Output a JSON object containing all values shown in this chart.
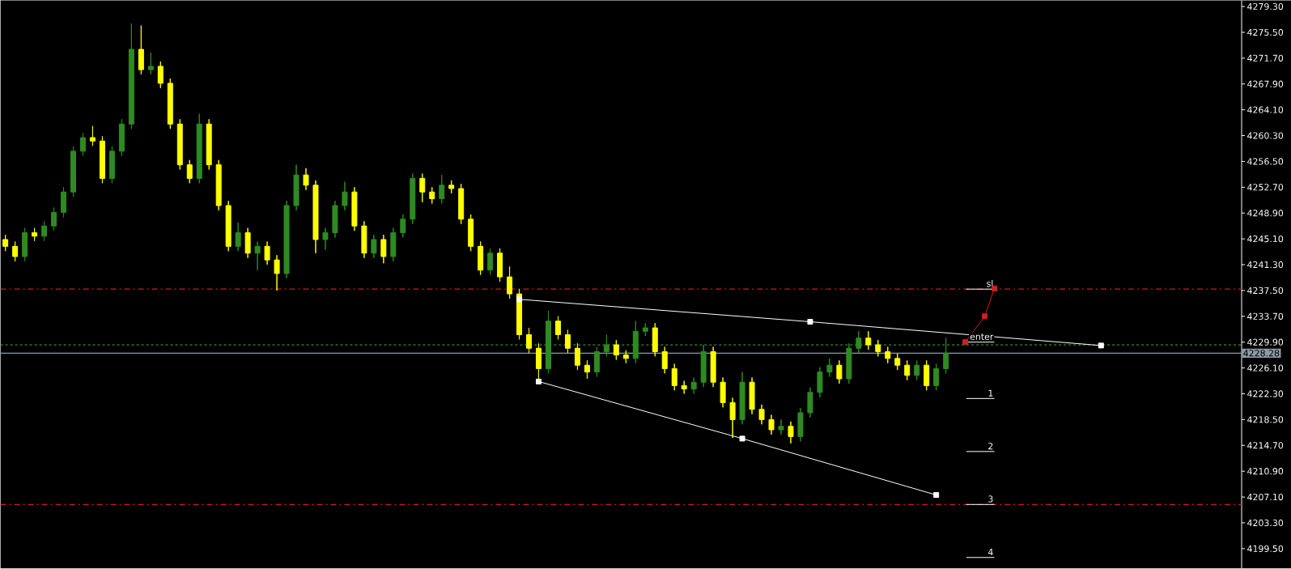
{
  "chart_data": {
    "type": "candlestick",
    "categories": [
      null,
      null,
      null,
      null,
      null,
      null,
      null,
      null,
      null,
      null,
      null,
      null,
      null,
      null,
      null,
      null,
      null,
      null,
      null,
      null,
      null,
      null,
      null,
      null,
      null,
      null,
      null,
      null,
      null,
      null,
      null,
      null,
      null,
      null,
      null,
      null,
      null,
      null,
      null,
      null,
      null,
      null,
      null,
      null,
      null,
      null,
      null,
      null,
      null,
      null,
      null,
      null,
      null,
      null,
      null,
      null,
      null,
      null,
      null,
      null,
      null,
      null,
      null,
      null,
      null,
      null,
      null,
      null,
      null,
      null,
      null,
      null,
      null,
      null,
      null,
      null,
      null,
      null,
      null,
      null,
      null,
      null,
      null,
      null,
      null,
      null,
      null,
      null,
      null,
      null,
      null,
      null,
      null,
      null,
      null,
      null,
      null,
      null,
      null,
      null,
      null,
      null,
      null,
      null,
      null,
      null,
      null,
      null,
      null,
      null,
      null,
      null,
      null,
      null,
      null,
      null,
      null,
      null,
      null,
      null,
      null,
      null,
      null,
      null,
      null,
      null,
      null,
      null
    ],
    "ohlc": [
      [
        4245,
        4245.7,
        4243.3,
        4244
      ],
      [
        4244,
        4244.7,
        4241.8,
        4242.5
      ],
      [
        4242.5,
        4246.7,
        4241.8,
        4246
      ],
      [
        4246,
        4246.7,
        4244.8,
        4245.5
      ],
      [
        4245.5,
        4247.7,
        4244.8,
        4247
      ],
      [
        4247,
        4249.7,
        4246.3,
        4249
      ],
      [
        4249,
        4252.7,
        4248.3,
        4252
      ],
      [
        4252,
        4258.7,
        4251.3,
        4258
      ],
      [
        4258,
        4260.7,
        4257.3,
        4260
      ],
      [
        4260,
        4261.7,
        4258.8,
        4259.5
      ],
      [
        4259.5,
        4260.2,
        4253.3,
        4254
      ],
      [
        4254,
        4258.7,
        4253.3,
        4258
      ],
      [
        4258,
        4262.7,
        4257.3,
        4262
      ],
      [
        4262,
        4276.8,
        4261.3,
        4273
      ],
      [
        4273,
        4276.5,
        4269.3,
        4270
      ],
      [
        4270,
        4272.5,
        4269.3,
        4270.5
      ],
      [
        4270.5,
        4271.2,
        4267.3,
        4268
      ],
      [
        4268,
        4268.7,
        4261.3,
        4262
      ],
      [
        4262,
        4262.7,
        4255.3,
        4256
      ],
      [
        4256,
        4256.7,
        4253.3,
        4254
      ],
      [
        4254,
        4263.5,
        4253.3,
        4262
      ],
      [
        4262,
        4262.7,
        4255.3,
        4256
      ],
      [
        4256,
        4256.7,
        4249.3,
        4250
      ],
      [
        4250,
        4250.7,
        4243.3,
        4244
      ],
      [
        4244,
        4247.5,
        4243.3,
        4246
      ],
      [
        4246,
        4246.7,
        4242.3,
        4243
      ],
      [
        4243,
        4244.7,
        4240.5,
        4244
      ],
      [
        4244,
        4244.7,
        4241.3,
        4242
      ],
      [
        4242,
        4242.7,
        4237.5,
        4240
      ],
      [
        4240,
        4250.7,
        4239.3,
        4250
      ],
      [
        4250,
        4256,
        4249.3,
        4254.5
      ],
      [
        4254.5,
        4255.5,
        4252.3,
        4253
      ],
      [
        4253,
        4253.7,
        4243,
        4245
      ],
      [
        4245,
        4246.7,
        4243.5,
        4246
      ],
      [
        4246,
        4250.7,
        4245.3,
        4250
      ],
      [
        4250,
        4253.5,
        4249.3,
        4252
      ],
      [
        4252,
        4252.7,
        4246.3,
        4247
      ],
      [
        4247,
        4247.7,
        4242.3,
        4243
      ],
      [
        4243,
        4245.7,
        4242.3,
        4245
      ],
      [
        4245,
        4245.7,
        4241.5,
        4242.5
      ],
      [
        4242.5,
        4246.7,
        4241.8,
        4246
      ],
      [
        4246,
        4248.7,
        4245.3,
        4248
      ],
      [
        4248,
        4254.7,
        4247.3,
        4254
      ],
      [
        4254,
        4254.7,
        4250.5,
        4252
      ],
      [
        4252,
        4252.7,
        4250.3,
        4251
      ],
      [
        4251,
        4254.5,
        4250.3,
        4253
      ],
      [
        4253,
        4253.7,
        4251.8,
        4252.5
      ],
      [
        4252.5,
        4253.2,
        4247.3,
        4248
      ],
      [
        4248,
        4248.7,
        4243.3,
        4244
      ],
      [
        4244,
        4244.7,
        4239.8,
        4240.5
      ],
      [
        4240.5,
        4243.7,
        4239.8,
        4243
      ],
      [
        4243,
        4243.7,
        4238.8,
        4239.5
      ],
      [
        4239.5,
        4241,
        4236.3,
        4237
      ],
      [
        4237,
        4237.7,
        4230.3,
        4231
      ],
      [
        4231,
        4232,
        4228.3,
        4229
      ],
      [
        4229,
        4229.7,
        4224.5,
        4226
      ],
      [
        4226,
        4234.5,
        4225.3,
        4233
      ],
      [
        4233,
        4233.7,
        4230.3,
        4231
      ],
      [
        4231,
        4231.7,
        4228.3,
        4229
      ],
      [
        4229,
        4229.7,
        4225.8,
        4226.5
      ],
      [
        4226.5,
        4227.2,
        4224.5,
        4225.5
      ],
      [
        4225.5,
        4229.2,
        4224.8,
        4228.5
      ],
      [
        4228.5,
        4231,
        4227.8,
        4229.5
      ],
      [
        4229.5,
        4230.2,
        4227.3,
        4228
      ],
      [
        4228,
        4228.7,
        4226.8,
        4227.5
      ],
      [
        4227.5,
        4233,
        4226.8,
        4231.5
      ],
      [
        4231.5,
        4232.7,
        4230.8,
        4232
      ],
      [
        4232,
        4232.7,
        4227.8,
        4228.5
      ],
      [
        4228.5,
        4229.2,
        4225.3,
        4226
      ],
      [
        4226,
        4226.7,
        4222.8,
        4223.5
      ],
      [
        4223.5,
        4224.2,
        4222.3,
        4223
      ],
      [
        4223,
        4224.7,
        4222.3,
        4224
      ],
      [
        4224,
        4229.5,
        4223.3,
        4228.5
      ],
      [
        4228.5,
        4229.2,
        4223.3,
        4224
      ],
      [
        4224,
        4224.7,
        4220.3,
        4221
      ],
      [
        4221,
        4221.7,
        4215.8,
        4218.5
      ],
      [
        4218.5,
        4225.5,
        4217.8,
        4224
      ],
      [
        4224,
        4224.7,
        4219.3,
        4220
      ],
      [
        4220,
        4220.7,
        4217.8,
        4218.5
      ],
      [
        4218.5,
        4219.2,
        4216.3,
        4217
      ],
      [
        4217,
        4218.5,
        4216.3,
        4217.5
      ],
      [
        4217.5,
        4218.2,
        4215,
        4216
      ],
      [
        4216,
        4220.2,
        4215.3,
        4219.5
      ],
      [
        4219.5,
        4223.2,
        4218.8,
        4222.5
      ],
      [
        4222.5,
        4226.2,
        4221.8,
        4225.5
      ],
      [
        4225.5,
        4227.5,
        4224.8,
        4226.5
      ],
      [
        4226.5,
        4227.2,
        4223.8,
        4224.5
      ],
      [
        4224.5,
        4229.7,
        4223.8,
        4229
      ],
      [
        4229,
        4231.5,
        4228.3,
        4230.5
      ],
      [
        4230.5,
        4231.5,
        4228.8,
        4229.5
      ],
      [
        4229.5,
        4230.2,
        4227.8,
        4228.5
      ],
      [
        4228.5,
        4229.2,
        4226.8,
        4227.5
      ],
      [
        4227.5,
        4228.2,
        4225.8,
        4226.5
      ],
      [
        4226.5,
        4227.2,
        4224.3,
        4225
      ],
      [
        4225,
        4227.2,
        4224.3,
        4226.5
      ],
      [
        4226.5,
        4227.2,
        4222.8,
        4223.5
      ],
      [
        4223.5,
        4226.7,
        4222.8,
        4226
      ],
      [
        4226,
        4230.5,
        4225.3,
        4228.28
      ],
      null,
      null,
      null,
      null,
      null,
      null,
      null,
      null,
      null,
      null,
      null,
      null,
      null,
      null,
      null,
      null,
      null,
      null,
      null,
      null,
      null,
      null,
      null,
      null,
      null,
      null,
      null,
      null,
      null,
      null
    ],
    "series": [
      {
        "type": "line",
        "color": "#ffffff",
        "marker": "square",
        "values": [
          null,
          null,
          null,
          null,
          null,
          null,
          null,
          null,
          null,
          null,
          null,
          null,
          null,
          null,
          null,
          null,
          null,
          null,
          null,
          null,
          null,
          null,
          null,
          null,
          null,
          null,
          null,
          null,
          null,
          null,
          null,
          null,
          null,
          null,
          null,
          null,
          null,
          null,
          null,
          null,
          null,
          null,
          null,
          null,
          null,
          null,
          null,
          null,
          null,
          null,
          null,
          null,
          null,
          4236.2,
          null,
          null,
          null,
          null,
          null,
          null,
          null,
          null,
          null,
          null,
          null,
          null,
          null,
          null,
          null,
          null,
          null,
          null,
          null,
          null,
          null,
          null,
          null,
          null,
          null,
          null,
          null,
          null,
          null,
          4232.9,
          null,
          null,
          null,
          null,
          null,
          null,
          null,
          null,
          null,
          null,
          null,
          null,
          null,
          null,
          null,
          null,
          null,
          null,
          null,
          null,
          null,
          null,
          null,
          null,
          null,
          null,
          null,
          null,
          null,
          4229.4,
          null,
          null,
          null,
          null,
          null,
          null,
          null,
          null,
          null,
          null,
          null,
          null,
          null,
          null
        ]
      },
      {
        "type": "line",
        "color": "#ffffff",
        "marker": "square",
        "values": [
          null,
          null,
          null,
          null,
          null,
          null,
          null,
          null,
          null,
          null,
          null,
          null,
          null,
          null,
          null,
          null,
          null,
          null,
          null,
          null,
          null,
          null,
          null,
          null,
          null,
          null,
          null,
          null,
          null,
          null,
          null,
          null,
          null,
          null,
          null,
          null,
          null,
          null,
          null,
          null,
          null,
          null,
          null,
          null,
          null,
          null,
          null,
          null,
          null,
          null,
          null,
          null,
          null,
          null,
          null,
          4224.1,
          null,
          null,
          null,
          null,
          null,
          null,
          null,
          null,
          null,
          null,
          null,
          null,
          null,
          null,
          null,
          null,
          null,
          null,
          null,
          null,
          4215.7,
          null,
          null,
          null,
          null,
          null,
          null,
          null,
          null,
          null,
          null,
          null,
          null,
          null,
          null,
          null,
          null,
          null,
          null,
          null,
          4207.4,
          null,
          null,
          null,
          null,
          null,
          null,
          null,
          null,
          null,
          null,
          null,
          null,
          null,
          null,
          null,
          null,
          null,
          null,
          null,
          null,
          null,
          null,
          null,
          null,
          null,
          null,
          null,
          null,
          null,
          null,
          null
        ]
      },
      {
        "type": "line",
        "color": "#d02020",
        "marker": "square",
        "values": [
          null,
          null,
          null,
          null,
          null,
          null,
          null,
          null,
          null,
          null,
          null,
          null,
          null,
          null,
          null,
          null,
          null,
          null,
          null,
          null,
          null,
          null,
          null,
          null,
          null,
          null,
          null,
          null,
          null,
          null,
          null,
          null,
          null,
          null,
          null,
          null,
          null,
          null,
          null,
          null,
          null,
          null,
          null,
          null,
          null,
          null,
          null,
          null,
          null,
          null,
          null,
          null,
          null,
          null,
          null,
          null,
          null,
          null,
          null,
          null,
          null,
          null,
          null,
          null,
          null,
          null,
          null,
          null,
          null,
          null,
          null,
          null,
          null,
          null,
          null,
          null,
          null,
          null,
          null,
          null,
          null,
          null,
          null,
          null,
          null,
          null,
          null,
          null,
          null,
          null,
          null,
          null,
          null,
          null,
          null,
          null,
          null,
          null,
          null,
          4229.9,
          null,
          4233.7,
          4237.8,
          null,
          null,
          null,
          null,
          null,
          null,
          null,
          null,
          null,
          null,
          null,
          null,
          null,
          null,
          null,
          null,
          null,
          null,
          null,
          null,
          null,
          null,
          null,
          null,
          null
        ]
      }
    ],
    "ylim": [
      4196.6,
      4280.2
    ],
    "yticks": [
      {
        "value": 4199.5,
        "label": "4199.50"
      },
      {
        "value": 4203.3,
        "label": "4203.30"
      },
      {
        "value": 4207.1,
        "label": "4207.10"
      },
      {
        "value": 4210.9,
        "label": "4210.90"
      },
      {
        "value": 4214.7,
        "label": "4214.70"
      },
      {
        "value": 4218.5,
        "label": "4218.50"
      },
      {
        "value": 4222.3,
        "label": "4222.30"
      },
      {
        "value": 4226.1,
        "label": "4226.10"
      },
      {
        "value": 4229.9,
        "label": "4229.90"
      },
      {
        "value": 4233.7,
        "label": "4233.70"
      },
      {
        "value": 4237.5,
        "label": "4237.50"
      },
      {
        "value": 4241.3,
        "label": "4241.30"
      },
      {
        "value": 4245.1,
        "label": "4245.10"
      },
      {
        "value": 4248.9,
        "label": "4248.90"
      },
      {
        "value": 4252.7,
        "label": "4252.70"
      },
      {
        "value": 4256.5,
        "label": "4256.50"
      },
      {
        "value": 4260.3,
        "label": "4260.30"
      },
      {
        "value": 4264.1,
        "label": "4264.10"
      },
      {
        "value": 4267.9,
        "label": "4267.90"
      },
      {
        "value": 4271.7,
        "label": "4271.70"
      },
      {
        "value": 4275.5,
        "label": "4275.50"
      },
      {
        "value": 4279.3,
        "label": "4279.30"
      }
    ],
    "tick_labels": "y",
    "ref_lines": [
      {
        "axis": "y",
        "value": 4237.7,
        "color": "#c81e1e",
        "line_style": "dashed"
      },
      {
        "axis": "y",
        "value": 4206.0,
        "color": "#c81e1e",
        "line_style": "dashed"
      },
      {
        "axis": "y",
        "value": 4229.5,
        "color": "#3c8c2c",
        "line_style": "dotted"
      },
      {
        "axis": "y",
        "value": 4228.28,
        "color": "#8c9aa6",
        "line_style": "solid",
        "label": "4228.28"
      }
    ],
    "annotations": [
      "sl",
      "enter",
      "1",
      "2",
      "3",
      "4"
    ]
  }
}
